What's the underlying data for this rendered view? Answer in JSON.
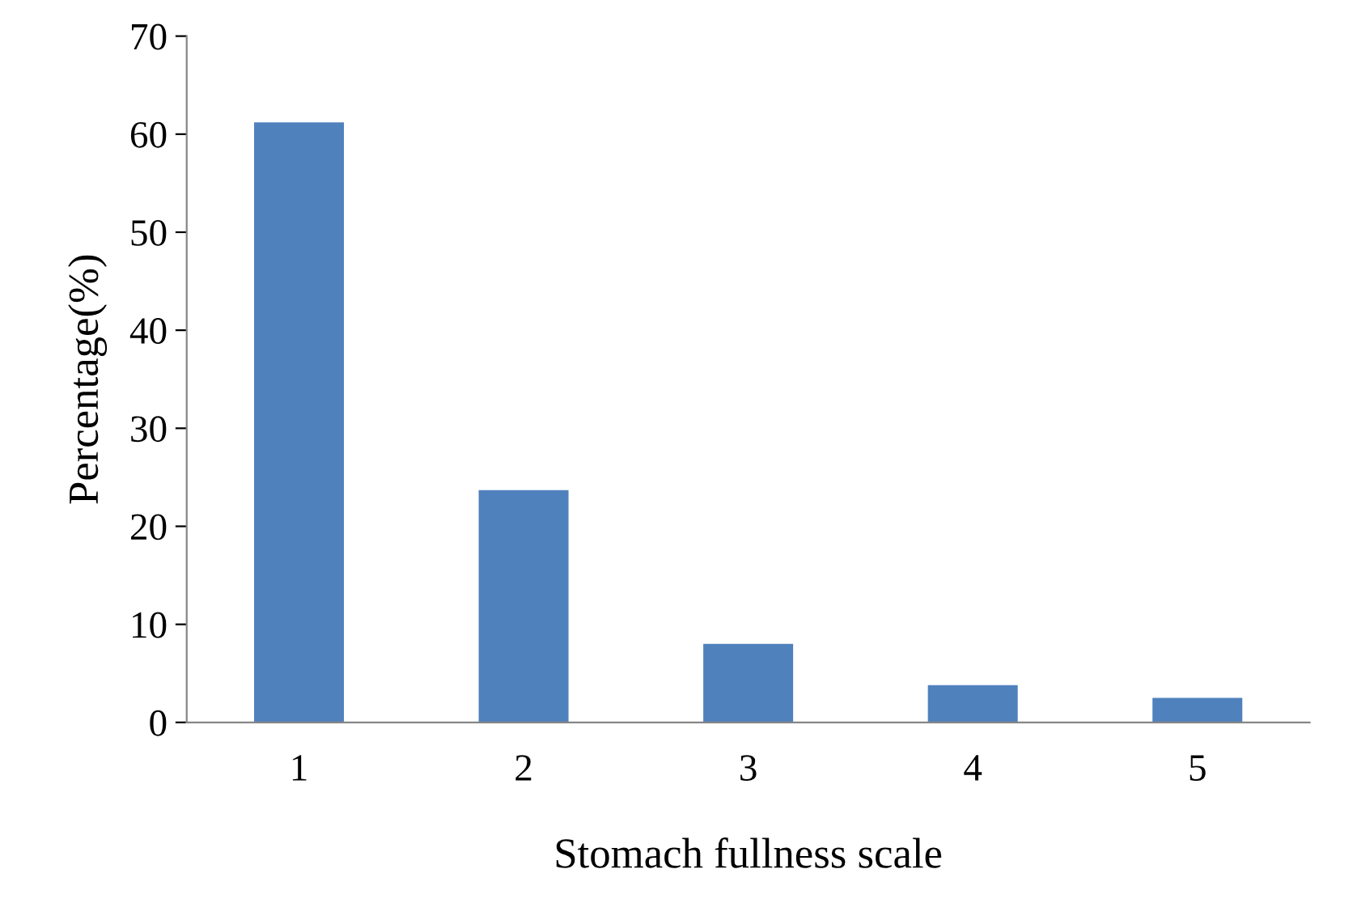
{
  "chart_data": {
    "type": "bar",
    "xlabel": "Stomach fullness scale",
    "ylabel": "Percentage(%)",
    "categories": [
      "1",
      "2",
      "3",
      "4",
      "5"
    ],
    "values": [
      61.2,
      23.7,
      8.0,
      3.8,
      2.5
    ],
    "color": "#4f81bd",
    "ylim": [
      0,
      70
    ],
    "yticks": [
      0,
      10,
      20,
      30,
      40,
      50,
      60,
      70
    ],
    "grid": false
  }
}
